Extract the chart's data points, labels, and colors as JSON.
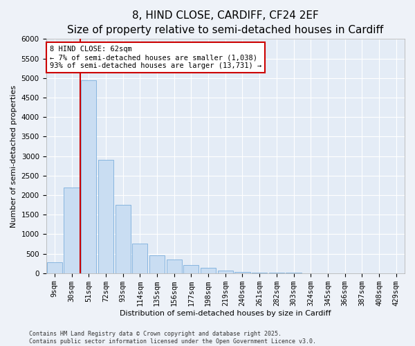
{
  "title": "8, HIND CLOSE, CARDIFF, CF24 2EF",
  "subtitle": "Size of property relative to semi-detached houses in Cardiff",
  "xlabel": "Distribution of semi-detached houses by size in Cardiff",
  "ylabel": "Number of semi-detached properties",
  "categories": [
    "9sqm",
    "30sqm",
    "51sqm",
    "72sqm",
    "93sqm",
    "114sqm",
    "135sqm",
    "156sqm",
    "177sqm",
    "198sqm",
    "219sqm",
    "240sqm",
    "261sqm",
    "282sqm",
    "303sqm",
    "324sqm",
    "345sqm",
    "366sqm",
    "387sqm",
    "408sqm",
    "429sqm"
  ],
  "values": [
    270,
    2200,
    4950,
    2900,
    1750,
    750,
    450,
    350,
    200,
    130,
    70,
    30,
    15,
    10,
    5,
    3,
    2,
    1,
    1,
    1,
    1
  ],
  "bar_color": "#c9ddf2",
  "bar_edge_color": "#7aaedc",
  "vline_color": "#cc0000",
  "vline_pos": 1.5,
  "annotation_text": "8 HIND CLOSE: 62sqm\n← 7% of semi-detached houses are smaller (1,038)\n93% of semi-detached houses are larger (13,731) →",
  "annotation_box_color": "white",
  "annotation_box_edge": "#cc0000",
  "ylim": [
    0,
    6000
  ],
  "yticks": [
    0,
    500,
    1000,
    1500,
    2000,
    2500,
    3000,
    3500,
    4000,
    4500,
    5000,
    5500,
    6000
  ],
  "footer_line1": "Contains HM Land Registry data © Crown copyright and database right 2025.",
  "footer_line2": "Contains public sector information licensed under the Open Government Licence v3.0.",
  "bg_color": "#eef2f8",
  "plot_bg_color": "#e4ecf6",
  "title_fontsize": 11,
  "subtitle_fontsize": 9,
  "axis_label_fontsize": 8,
  "tick_fontsize": 7.5
}
